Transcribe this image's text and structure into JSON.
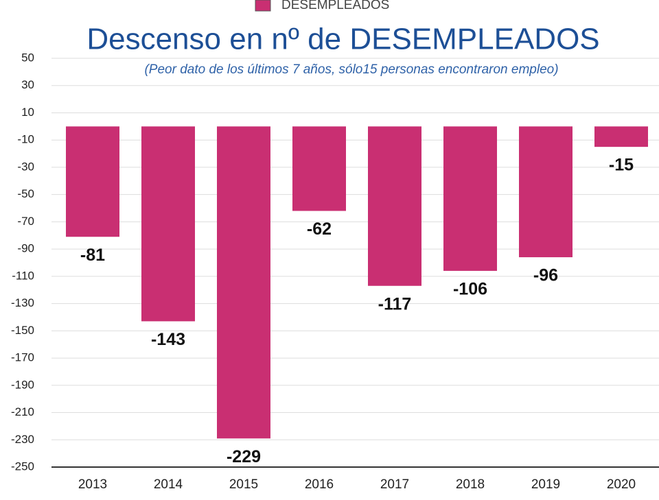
{
  "chart_data": {
    "type": "bar",
    "title": "Descenso en nº de DESEMPLEADOS",
    "subtitle": "(Peor dato de los últimos 7 años, sólo15 personas encontraron empleo)",
    "categories": [
      "2013",
      "2014",
      "2015",
      "2016",
      "2017",
      "2018",
      "2019",
      "2020"
    ],
    "series": [
      {
        "name": "DESEMPLEADOS",
        "color": "#c92f72",
        "values": [
          -81,
          -143,
          -229,
          -62,
          -117,
          -106,
          -96,
          -15
        ]
      }
    ],
    "ylim": [
      -250,
      50
    ],
    "yticks": [
      50,
      30,
      10,
      -10,
      -30,
      -50,
      -70,
      -90,
      -110,
      -130,
      -150,
      -170,
      -190,
      -210,
      -230,
      -250
    ],
    "grid": true
  }
}
